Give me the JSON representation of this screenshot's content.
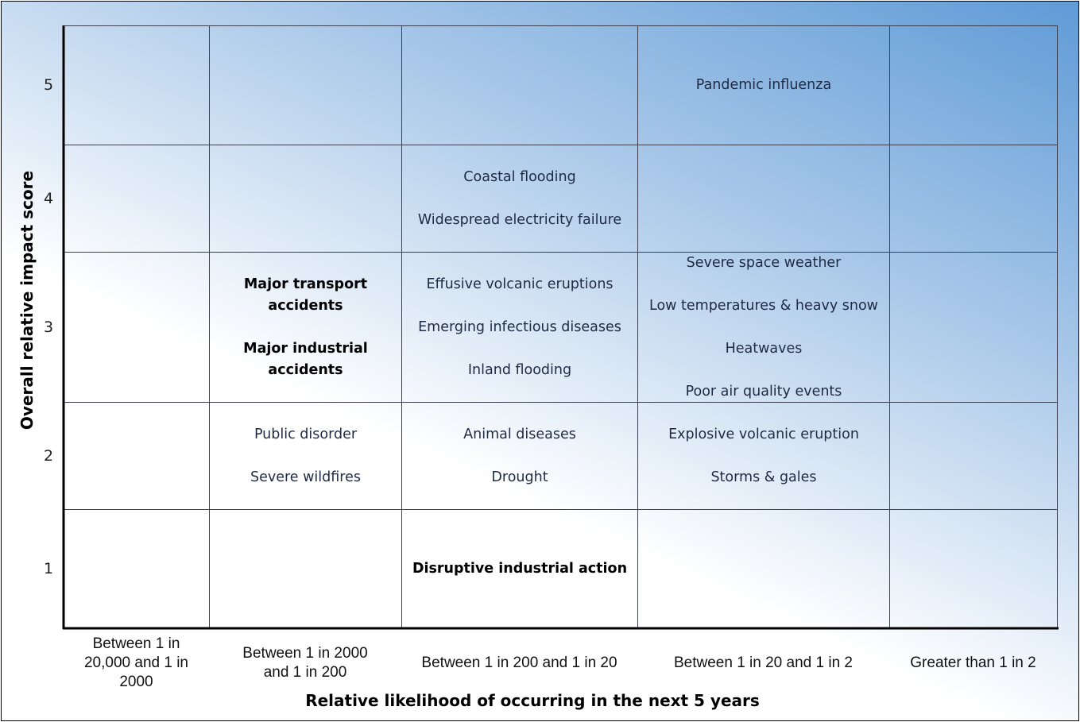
{
  "matrix": {
    "y_axis_title": "Overall relative impact score",
    "x_axis_title": "Relative likelihood of occurring in the next 5 years",
    "columns": [
      "Between 1 in 20,000 and 1 in 2000",
      "Between 1 in 2000 and 1 in 200",
      "Between 1 in 200 and 1 in 20",
      "Between 1 in 20 and 1 in 2",
      "Greater than 1 in 2"
    ],
    "rows": [
      {
        "score": 5,
        "cells": [
          [],
          [],
          [],
          [
            "Pandemic influenza"
          ],
          []
        ]
      },
      {
        "score": 4,
        "cells": [
          [],
          [],
          [
            "Coastal flooding",
            "Widespread electricity failure"
          ],
          [],
          []
        ]
      },
      {
        "score": 3,
        "cells": [
          [],
          [
            {
              "text": "Major transport accidents",
              "bold": true
            },
            {
              "text": "Major industrial accidents",
              "bold": true
            }
          ],
          [
            "Effusive volcanic eruptions",
            "Emerging infectious diseases",
            "Inland flooding"
          ],
          [
            "Severe space weather",
            "Low temperatures & heavy snow",
            "Heatwaves",
            "Poor air quality events"
          ],
          []
        ]
      },
      {
        "score": 2,
        "cells": [
          [],
          [
            "Public disorder",
            "Severe wildfires"
          ],
          [
            "Animal diseases",
            "Drought"
          ],
          [
            "Explosive volcanic eruption",
            "Storms & gales"
          ],
          []
        ]
      },
      {
        "score": 1,
        "cells": [
          [],
          [],
          [
            {
              "text": "Disruptive industrial action",
              "bold": true
            }
          ],
          [],
          []
        ]
      }
    ]
  }
}
